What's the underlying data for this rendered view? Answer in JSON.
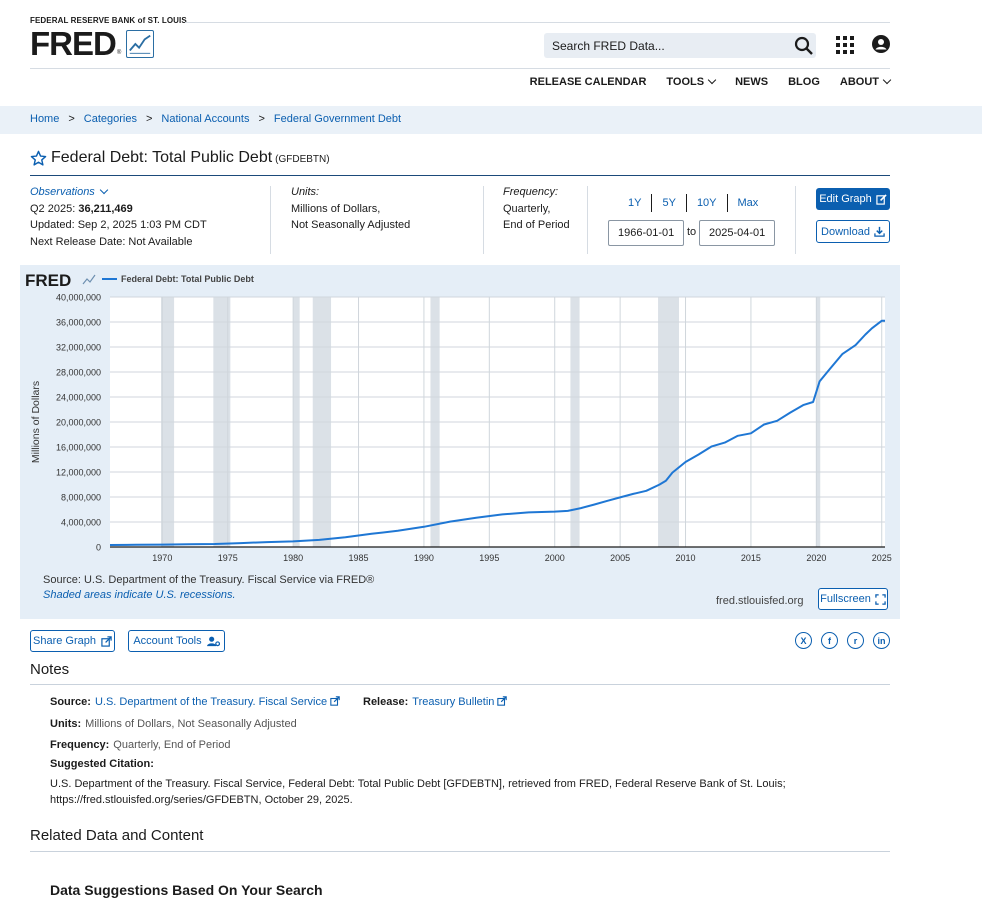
{
  "header": {
    "org": "FEDERAL RESERVE BANK of ST. LOUIS",
    "logo_text": "FRED",
    "logo_reg": "®",
    "search_placeholder": "Search FRED Data...",
    "nav": [
      "RELEASE CALENDAR",
      "TOOLS",
      "NEWS",
      "BLOG",
      "ABOUT"
    ],
    "icons": [
      "search-icon",
      "apps-grid-icon",
      "account-icon"
    ]
  },
  "breadcrumb": [
    "Home",
    "Categories",
    "National Accounts",
    "Federal Government Debt"
  ],
  "breadcrumb_sep": ">",
  "series": {
    "title": "Federal Debt: Total Public Debt",
    "id": "(GFDEBTN)"
  },
  "meta": {
    "observations_label": "Observations",
    "latest_period": "Q2 2025:",
    "latest_value": "36,211,469",
    "updated": "Updated: Sep 2, 2025 1:03 PM CDT",
    "next_release": "Next Release Date: Not Available",
    "units_label": "Units:",
    "units_line1": "Millions of Dollars,",
    "units_line2": "Not Seasonally Adjusted",
    "frequency_label": "Frequency:",
    "frequency_line1": "Quarterly,",
    "frequency_line2": "End of Period",
    "ranges": [
      "1Y",
      "5Y",
      "10Y",
      "Max"
    ],
    "start_date": "1966-01-01",
    "to": "to",
    "end_date": "2025-04-01",
    "edit_graph": "Edit Graph",
    "download": "Download"
  },
  "chart_panel": {
    "source": "Source: U.S. Department of the Treasury. Fiscal Service via FRED®",
    "shaded_note": "Shaded areas indicate U.S. recessions.",
    "url": "fred.stlouisfed.org",
    "fullscreen": "Fullscreen"
  },
  "chart_data": {
    "type": "line",
    "legend": "Federal Debt: Total Public Debt",
    "logo": "FRED",
    "ylabel": "Millions of Dollars",
    "ylim": [
      0,
      40000000
    ],
    "xlim": [
      1966.0,
      2025.25
    ],
    "yticks": [
      0,
      4000000,
      8000000,
      12000000,
      16000000,
      20000000,
      24000000,
      28000000,
      32000000,
      36000000,
      40000000
    ],
    "ytick_labels": [
      "0",
      "4,000,000",
      "8,000,000",
      "12,000,000",
      "16,000,000",
      "20,000,000",
      "24,000,000",
      "28,000,000",
      "32,000,000",
      "36,000,000",
      "40,000,000"
    ],
    "xticks": [
      1970,
      1975,
      1980,
      1985,
      1990,
      1995,
      2000,
      2005,
      2010,
      2015,
      2020,
      2025
    ],
    "line_color": "#1f77d4",
    "grid": true,
    "recessions": [
      [
        1969.9,
        1970.9
      ],
      [
        1973.9,
        1975.2
      ],
      [
        1980.0,
        1980.5
      ],
      [
        1981.5,
        1982.9
      ],
      [
        1990.5,
        1991.2
      ],
      [
        2001.2,
        2001.9
      ],
      [
        2007.9,
        2009.5
      ],
      [
        2020.0,
        2020.3
      ]
    ],
    "x": [
      1966,
      1968,
      1970,
      1972,
      1974,
      1976,
      1978,
      1980,
      1982,
      1984,
      1986,
      1988,
      1990,
      1992,
      1994,
      1996,
      1998,
      2000,
      2001,
      2002,
      2003,
      2004,
      2005,
      2006,
      2007,
      2008,
      2008.5,
      2009,
      2010,
      2011,
      2012,
      2013,
      2014,
      2015,
      2016,
      2017,
      2018,
      2019,
      2019.75,
      2020.25,
      2021,
      2022,
      2023,
      2023.75,
      2024.25,
      2025,
      2025.25
    ],
    "values": [
      320000,
      350000,
      380000,
      430000,
      480000,
      620000,
      780000,
      900000,
      1140000,
      1570000,
      2120000,
      2600000,
      3230000,
      4060000,
      4690000,
      5220000,
      5530000,
      5670000,
      5780000,
      6230000,
      6780000,
      7380000,
      7930000,
      8500000,
      9000000,
      9990000,
      10600000,
      11900000,
      13600000,
      14800000,
      16100000,
      16700000,
      17800000,
      18200000,
      19600000,
      20200000,
      21500000,
      22700000,
      23200000,
      26500000,
      28400000,
      30900000,
      32300000,
      34000000,
      35000000,
      36200000,
      36211469
    ]
  },
  "share": {
    "share_graph": "Share Graph",
    "account_tools": "Account Tools",
    "social": [
      "X",
      "f",
      "r",
      "in"
    ]
  },
  "notes": {
    "title": "Notes",
    "source_label": "Source:",
    "source_value": "U.S. Department of the Treasury. Fiscal Service",
    "release_label": "Release:",
    "release_value": "Treasury Bulletin",
    "units_label": "Units:",
    "units_value": "Millions of Dollars, Not Seasonally Adjusted",
    "frequency_label": "Frequency:",
    "frequency_value": "Quarterly, End of Period",
    "citation_label": "Suggested Citation:",
    "citation_line1": "U.S. Department of the Treasury. Fiscal Service, Federal Debt: Total Public Debt [GFDEBTN], retrieved from FRED, Federal Reserve Bank of St. Louis;",
    "citation_line2": "https://fred.stlouisfed.org/series/GFDEBTN, October 29, 2025."
  },
  "related": {
    "title": "Related Data and Content",
    "suggestions_title": "Data Suggestions Based On Your Search"
  }
}
